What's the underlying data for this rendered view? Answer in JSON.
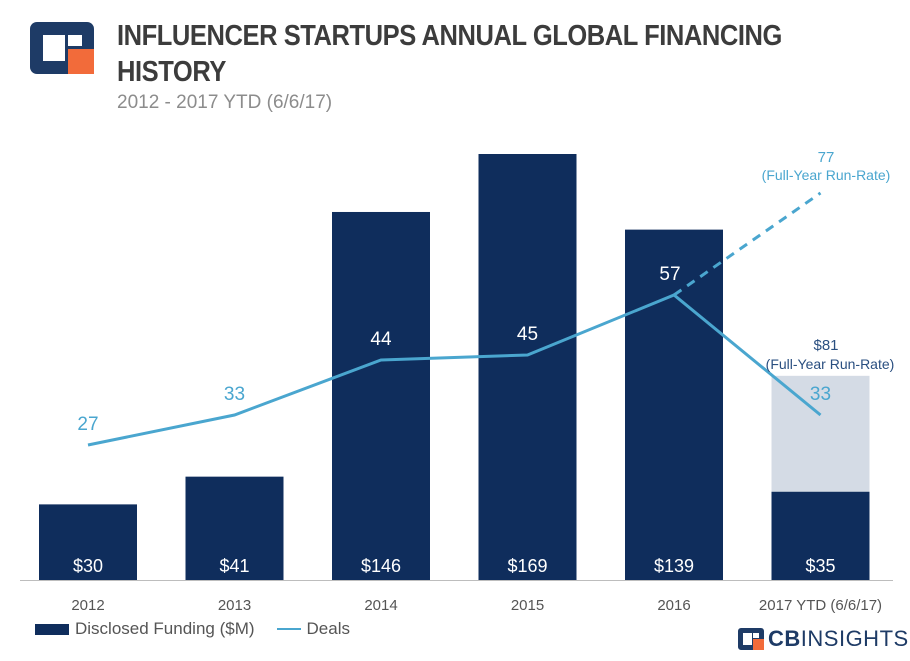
{
  "header": {
    "title": "INFLUENCER STARTUPS ANNUAL GLOBAL FINANCING HISTORY",
    "subtitle": "2012 - 2017 YTD (6/6/17)"
  },
  "colors": {
    "bar": "#0f2d5c",
    "bar_runrate": "#d4dbe5",
    "line": "#4aa6cf",
    "runrate_label": "#2a4f80"
  },
  "legend": {
    "funding_label": "Disclosed Funding ($M)",
    "deals_label": "Deals"
  },
  "brand": {
    "name_bold": "CB",
    "name_thin": "INSIGHTS"
  },
  "chart_data": {
    "type": "bar+line",
    "categories": [
      "2012",
      "2013",
      "2014",
      "2015",
      "2016",
      "2017 YTD (6/6/17)"
    ],
    "series": [
      {
        "name": "Disclosed Funding ($M)",
        "type": "bar",
        "values": [
          30,
          41,
          146,
          169,
          139,
          35
        ],
        "labels": [
          "$30",
          "$41",
          "$146",
          "$169",
          "$139",
          "$35"
        ]
      },
      {
        "name": "Deals",
        "type": "line",
        "values": [
          27,
          33,
          44,
          45,
          57,
          33
        ],
        "labels": [
          "27",
          "33",
          "44",
          "45",
          "57",
          "33"
        ]
      }
    ],
    "runrate": {
      "funding_value": 81,
      "funding_label": "$81",
      "funding_note": "(Full-Year Run-Rate)",
      "deals_value": 77,
      "deals_label": "77",
      "deals_note": "(Full-Year Run-Rate)"
    },
    "funding_ylim": [
      0,
      169
    ],
    "deals_ylim": [
      0,
      77
    ]
  }
}
